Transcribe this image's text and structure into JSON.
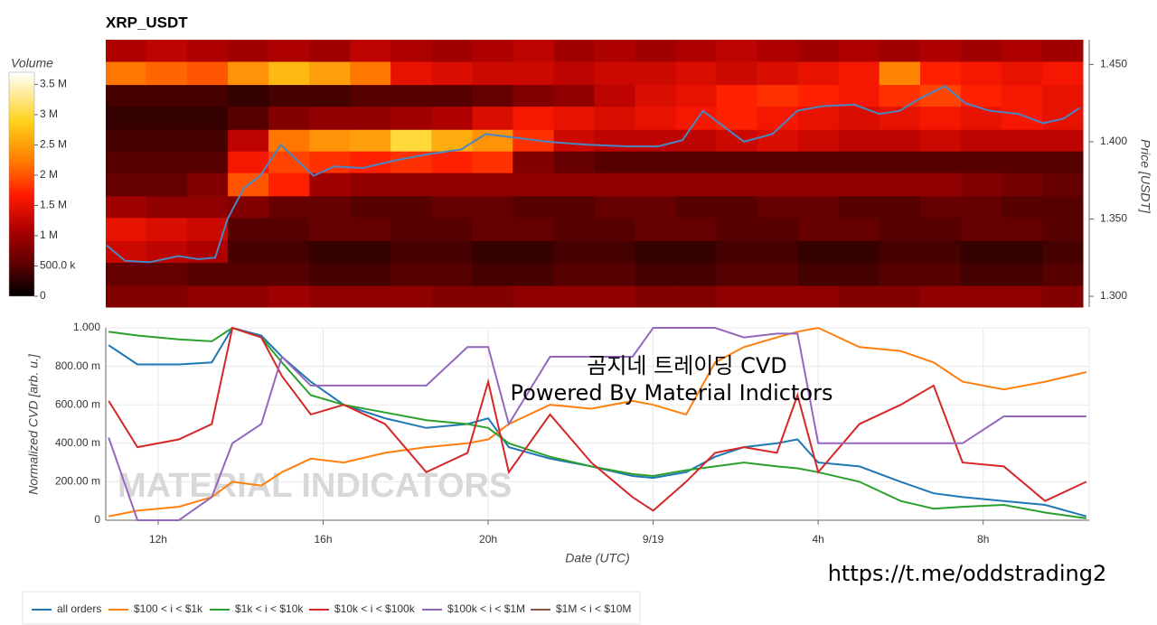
{
  "chart_data": [
    {
      "type": "heatmap",
      "title": "XRP_USDT",
      "colorbar_label": "Volume",
      "y_label": "Price [USDT]",
      "xlim": [
        10.73,
        34.57
      ],
      "ylim": [
        1.293,
        1.466
      ],
      "yticks": [
        {
          "value": 1.3,
          "label": "1.300"
        },
        {
          "value": 1.35,
          "label": "1.350"
        },
        {
          "value": 1.4,
          "label": "1.400"
        },
        {
          "value": 1.45,
          "label": "1.450"
        }
      ],
      "zlim": [
        0,
        3700000
      ],
      "zticks": [
        0,
        {
          "value": 500000,
          "label": "500.0 k"
        },
        {
          "value": 1000000,
          "label": "1 M"
        },
        {
          "value": 1500000,
          "label": "1.5 M"
        },
        {
          "value": 2000000,
          "label": "2 M"
        },
        {
          "value": 2500000,
          "label": "2.5 M"
        },
        {
          "value": 3000000,
          "label": "3 M"
        },
        {
          "value": 3500000,
          "label": "3.5 M"
        }
      ],
      "x_edges": [
        10.73,
        11.72,
        12.72,
        13.71,
        14.7,
        15.7,
        16.69,
        17.68,
        18.68,
        19.67,
        20.66,
        21.66,
        22.65,
        23.64,
        24.64,
        25.63,
        26.62,
        27.62,
        28.61,
        29.6,
        30.6,
        31.59,
        32.58,
        33.58,
        34.57
      ],
      "y_edges": [
        1.293,
        1.307,
        1.322,
        1.336,
        1.351,
        1.365,
        1.38,
        1.394,
        1.408,
        1.423,
        1.437,
        1.452,
        1.466
      ],
      "values": [
        [
          800000,
          800000,
          900000,
          900000,
          1000000,
          900000,
          900000,
          900000,
          800000,
          800000,
          900000,
          900000,
          900000,
          800000,
          800000,
          900000,
          900000,
          900000,
          800000,
          800000,
          900000,
          900000,
          900000,
          800000
        ],
        [
          600000,
          600000,
          500000,
          500000,
          500000,
          400000,
          400000,
          500000,
          500000,
          400000,
          400000,
          500000,
          500000,
          400000,
          400000,
          500000,
          500000,
          400000,
          400000,
          500000,
          500000,
          400000,
          400000,
          500000
        ],
        [
          1300000,
          1200000,
          1100000,
          400000,
          400000,
          300000,
          300000,
          400000,
          400000,
          300000,
          300000,
          400000,
          400000,
          300000,
          300000,
          400000,
          400000,
          300000,
          300000,
          400000,
          400000,
          300000,
          300000,
          400000
        ],
        [
          1500000,
          1400000,
          1300000,
          500000,
          500000,
          600000,
          600000,
          500000,
          500000,
          600000,
          600000,
          500000,
          500000,
          600000,
          600000,
          500000,
          500000,
          600000,
          600000,
          500000,
          500000,
          600000,
          600000,
          500000
        ],
        [
          1000000,
          900000,
          900000,
          800000,
          600000,
          600000,
          500000,
          500000,
          600000,
          600000,
          500000,
          500000,
          600000,
          600000,
          500000,
          500000,
          600000,
          600000,
          500000,
          500000,
          600000,
          600000,
          500000,
          500000
        ],
        [
          600000,
          600000,
          800000,
          2000000,
          1700000,
          1000000,
          900000,
          900000,
          900000,
          900000,
          900000,
          900000,
          900000,
          900000,
          900000,
          900000,
          900000,
          900000,
          900000,
          900000,
          900000,
          800000,
          700000,
          600000
        ],
        [
          500000,
          500000,
          500000,
          1600000,
          1900000,
          1800000,
          1700000,
          1800000,
          1700000,
          1800000,
          800000,
          600000,
          500000,
          500000,
          500000,
          500000,
          500000,
          500000,
          500000,
          500000,
          500000,
          500000,
          500000,
          500000
        ],
        [
          400000,
          400000,
          400000,
          1200000,
          2200000,
          2400000,
          2500000,
          3000000,
          2600000,
          2400000,
          1800000,
          1300000,
          1200000,
          1200000,
          1200000,
          1300000,
          1400000,
          1300000,
          1200000,
          1200000,
          1300000,
          1200000,
          1200000,
          1200000
        ],
        [
          300000,
          300000,
          300000,
          500000,
          800000,
          900000,
          900000,
          1000000,
          1100000,
          1400000,
          1600000,
          1500000,
          1400000,
          1500000,
          1600000,
          1700000,
          1600000,
          1500000,
          1400000,
          1500000,
          1600000,
          1500000,
          1600000,
          1500000
        ],
        [
          400000,
          400000,
          400000,
          300000,
          400000,
          400000,
          500000,
          500000,
          500000,
          600000,
          800000,
          900000,
          1200000,
          1400000,
          1500000,
          1700000,
          1800000,
          1700000,
          1600000,
          1800000,
          1900000,
          1700000,
          1600000,
          1500000
        ],
        [
          2200000,
          2100000,
          2000000,
          2400000,
          2700000,
          2500000,
          2200000,
          1500000,
          1400000,
          1300000,
          1300000,
          1200000,
          1300000,
          1300000,
          1400000,
          1300000,
          1400000,
          1500000,
          1600000,
          2300000,
          1700000,
          1600000,
          1500000,
          1600000
        ],
        [
          1100000,
          1200000,
          1100000,
          1000000,
          1100000,
          1000000,
          1200000,
          1100000,
          1000000,
          1100000,
          1200000,
          1000000,
          1100000,
          1000000,
          1100000,
          1200000,
          1100000,
          1000000,
          1100000,
          1000000,
          1100000,
          1000000,
          1100000,
          1000000
        ]
      ],
      "price_line": {
        "color": "#4a86c0",
        "x": [
          10.75,
          11.2,
          11.8,
          12.5,
          13.0,
          13.4,
          13.7,
          14.1,
          14.5,
          15.0,
          15.4,
          15.8,
          16.3,
          17.0,
          17.8,
          18.6,
          19.4,
          20.0,
          20.6,
          21.5,
          22.5,
          23.5,
          24.2,
          24.8,
          25.3,
          25.7,
          26.3,
          27.0,
          27.6,
          28.2,
          29.0,
          29.6,
          30.1,
          30.6,
          31.2,
          31.7,
          32.3,
          33.0,
          33.6,
          34.1,
          34.5
        ],
        "values": [
          1.333,
          1.323,
          1.322,
          1.326,
          1.324,
          1.325,
          1.35,
          1.37,
          1.378,
          1.398,
          1.388,
          1.378,
          1.384,
          1.383,
          1.388,
          1.392,
          1.395,
          1.405,
          1.403,
          1.4,
          1.398,
          1.397,
          1.397,
          1.401,
          1.42,
          1.412,
          1.4,
          1.405,
          1.42,
          1.423,
          1.424,
          1.418,
          1.42,
          1.428,
          1.436,
          1.425,
          1.42,
          1.418,
          1.412,
          1.415,
          1.422
        ]
      }
    },
    {
      "type": "line",
      "y_label": "Normalized CVD [arb. u.]",
      "x_label": "Date (UTC)",
      "xlim": [
        10.73,
        34.57
      ],
      "ylim": [
        0,
        1
      ],
      "xticks": [
        {
          "value": 12,
          "label": "12h"
        },
        {
          "value": 16,
          "label": "16h"
        },
        {
          "value": 20,
          "label": "20h"
        },
        {
          "value": 24,
          "label": "9/19"
        },
        {
          "value": 28,
          "label": "4h"
        },
        {
          "value": 32,
          "label": "8h"
        }
      ],
      "yticks": [
        0,
        {
          "value": 0.2,
          "label": "200.00 m"
        },
        {
          "value": 0.4,
          "label": "400.00 m"
        },
        {
          "value": 0.6,
          "label": "600.00 m"
        },
        {
          "value": 0.8,
          "label": "800.00 m"
        },
        {
          "value": 1,
          "label": "1.000"
        }
      ],
      "grid": true,
      "x": [
        10.8,
        11.5,
        12.5,
        13.3,
        13.8,
        14.5,
        15,
        15.7,
        16.5,
        17.5,
        18.5,
        19.5,
        20,
        20.5,
        21.5,
        22.5,
        23.5,
        24,
        24.8,
        25.5,
        26.2,
        27,
        27.5,
        28,
        29,
        30,
        30.8,
        31.5,
        32.5,
        33.5,
        34.5
      ],
      "series": [
        {
          "name": "all orders",
          "color": "#1f77b4",
          "values": [
            0.91,
            0.81,
            0.81,
            0.82,
            1.0,
            0.96,
            0.85,
            0.72,
            0.6,
            0.53,
            0.48,
            0.5,
            0.53,
            0.38,
            0.32,
            0.28,
            0.23,
            0.22,
            0.25,
            0.33,
            0.38,
            0.4,
            0.42,
            0.3,
            0.28,
            0.2,
            0.14,
            0.12,
            0.1,
            0.08,
            0.02
          ]
        },
        {
          "name": "$100 < i < $1k",
          "color": "#ff7f0e",
          "values": [
            0.02,
            0.05,
            0.07,
            0.12,
            0.2,
            0.18,
            0.25,
            0.32,
            0.3,
            0.35,
            0.38,
            0.4,
            0.42,
            0.5,
            0.6,
            0.58,
            0.62,
            0.6,
            0.55,
            0.82,
            0.9,
            0.95,
            0.98,
            1.0,
            0.9,
            0.88,
            0.82,
            0.72,
            0.68,
            0.72,
            0.77
          ]
        },
        {
          "name": "$1k < i < $10k",
          "color": "#2ca02c",
          "values": [
            0.98,
            0.96,
            0.94,
            0.93,
            1.0,
            0.95,
            0.82,
            0.65,
            0.6,
            0.56,
            0.52,
            0.5,
            0.48,
            0.4,
            0.33,
            0.28,
            0.24,
            0.23,
            0.26,
            0.28,
            0.3,
            0.28,
            0.27,
            0.25,
            0.2,
            0.1,
            0.06,
            0.07,
            0.08,
            0.04,
            0.01
          ]
        },
        {
          "name": "$10k < i < $100k",
          "color": "#d62728",
          "values": [
            0.62,
            0.38,
            0.42,
            0.5,
            1.0,
            0.95,
            0.75,
            0.55,
            0.6,
            0.5,
            0.25,
            0.35,
            0.72,
            0.25,
            0.55,
            0.3,
            0.12,
            0.05,
            0.2,
            0.35,
            0.38,
            0.35,
            0.65,
            0.25,
            0.5,
            0.6,
            0.7,
            0.3,
            0.28,
            0.1,
            0.2
          ]
        },
        {
          "name": "$100k < i < $1M",
          "color": "#9467bd",
          "values": [
            0.43,
            0.0,
            0.0,
            0.12,
            0.4,
            0.5,
            0.85,
            0.7,
            0.7,
            0.7,
            0.7,
            0.9,
            0.9,
            0.5,
            0.85,
            0.85,
            0.85,
            1.0,
            1.0,
            1.0,
            0.95,
            0.97,
            0.97,
            0.4,
            0.4,
            0.4,
            0.4,
            0.4,
            0.54,
            0.54,
            0.54
          ]
        },
        {
          "name": "$1M < i < $10M",
          "color": "#8c564b",
          "values": [
            null,
            null,
            null,
            null,
            null,
            null,
            null,
            null,
            null,
            null,
            null,
            null,
            null,
            null,
            null,
            null,
            null,
            null,
            null,
            null,
            null,
            null,
            null,
            null,
            null,
            null,
            null,
            null,
            null,
            null,
            null
          ]
        }
      ],
      "watermark": "MATERIAL INDICATORS",
      "annotations": [
        "곰지네 트레이딩 CVD",
        "Powered By Material Indictors",
        "https://t.me/oddstrading2"
      ]
    }
  ]
}
